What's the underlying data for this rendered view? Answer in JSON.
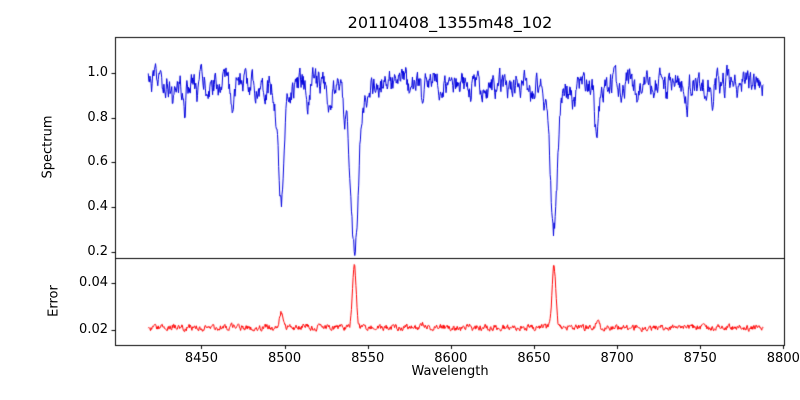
{
  "chart_data": {
    "type": "line",
    "title": "20110408_1355m48_102",
    "xlabel": "Wavelength",
    "xlim": [
      8398,
      8801
    ],
    "x_range": [
      8418,
      8788
    ],
    "xticks": [
      8450,
      8500,
      8550,
      8600,
      8650,
      8700,
      8750,
      8800
    ],
    "xtick_labels": [
      "8450",
      "8500",
      "8550",
      "8600",
      "8650",
      "8700",
      "8750",
      "8800"
    ],
    "grid": false,
    "legend": "none",
    "panels": [
      {
        "name": "spectrum",
        "ylabel": "Spectrum",
        "color": "#0000dd",
        "ylim": [
          0.173,
          1.161
        ],
        "yticks": [
          0.2,
          0.4,
          0.6,
          0.8,
          1.0
        ],
        "ytick_labels": [
          "0.2",
          "0.4",
          "0.6",
          "0.8",
          "1.0"
        ],
        "continuum": 0.955,
        "noise_sd_input": 0.045,
        "noise_smooth": 0.62,
        "clip_max": 1.05,
        "absorption_lines": [
          {
            "center": 8498,
            "depth": 0.47,
            "sigma": 1.7
          },
          {
            "center": 8498,
            "depth": 0.06,
            "sigma": 5.0
          },
          {
            "center": 8542,
            "depth": 0.62,
            "sigma": 2.3
          },
          {
            "center": 8542,
            "depth": 0.1,
            "sigma": 7.0
          },
          {
            "center": 8662,
            "depth": 0.55,
            "sigma": 2.0
          },
          {
            "center": 8662,
            "depth": 0.09,
            "sigma": 6.0
          },
          {
            "center": 8688,
            "depth": 0.22,
            "sigma": 1.4
          },
          {
            "center": 8433,
            "depth": 0.09,
            "sigma": 1.0
          },
          {
            "center": 8440,
            "depth": 0.12,
            "sigma": 0.9
          },
          {
            "center": 8447,
            "depth": 0.07,
            "sigma": 0.8
          },
          {
            "center": 8455,
            "depth": 0.05,
            "sigma": 0.8
          },
          {
            "center": 8468,
            "depth": 0.1,
            "sigma": 1.0
          },
          {
            "center": 8482,
            "depth": 0.06,
            "sigma": 0.8
          },
          {
            "center": 8514,
            "depth": 0.11,
            "sigma": 1.0
          },
          {
            "center": 8527,
            "depth": 0.09,
            "sigma": 0.9
          },
          {
            "center": 8536,
            "depth": 0.06,
            "sigma": 0.8
          },
          {
            "center": 8583,
            "depth": 0.11,
            "sigma": 1.0
          },
          {
            "center": 8598,
            "depth": 0.05,
            "sigma": 0.8
          },
          {
            "center": 8611,
            "depth": 0.07,
            "sigma": 0.9
          },
          {
            "center": 8621,
            "depth": 0.11,
            "sigma": 1.0
          },
          {
            "center": 8635,
            "depth": 0.05,
            "sigma": 0.8
          },
          {
            "center": 8648,
            "depth": 0.07,
            "sigma": 0.9
          },
          {
            "center": 8674,
            "depth": 0.09,
            "sigma": 0.9
          },
          {
            "center": 8702,
            "depth": 0.05,
            "sigma": 0.8
          },
          {
            "center": 8712,
            "depth": 0.08,
            "sigma": 0.9
          },
          {
            "center": 8730,
            "depth": 0.06,
            "sigma": 0.8
          },
          {
            "center": 8742,
            "depth": 0.09,
            "sigma": 0.9
          },
          {
            "center": 8757,
            "depth": 0.07,
            "sigma": 0.8
          },
          {
            "center": 8772,
            "depth": 0.05,
            "sigma": 0.8
          }
        ],
        "line_minima": {
          "8498": 0.42,
          "8542": 0.24,
          "8662": 0.31,
          "8688": 0.73
        }
      },
      {
        "name": "error",
        "ylabel": "Error",
        "color": "#ff0000",
        "ylim": [
          0.0136,
          0.0506
        ],
        "yticks": [
          0.02,
          0.04
        ],
        "ytick_labels": [
          "0.02",
          "0.04"
        ],
        "baseline": 0.021,
        "noise_sd_input": 0.0011,
        "noise_smooth": 0.5,
        "peaks": [
          {
            "center": 8433,
            "height": 0.0008,
            "sigma": 0.9
          },
          {
            "center": 8468,
            "height": 0.001,
            "sigma": 0.9
          },
          {
            "center": 8498,
            "height": 0.0062,
            "sigma": 1.0
          },
          {
            "center": 8514,
            "height": 0.0012,
            "sigma": 0.9
          },
          {
            "center": 8542,
            "height": 0.026,
            "sigma": 1.1
          },
          {
            "center": 8583,
            "height": 0.0022,
            "sigma": 0.9
          },
          {
            "center": 8621,
            "height": 0.001,
            "sigma": 0.9
          },
          {
            "center": 8662,
            "height": 0.027,
            "sigma": 1.1
          },
          {
            "center": 8688,
            "height": 0.0032,
            "sigma": 0.9
          },
          {
            "center": 8742,
            "height": 0.001,
            "sigma": 0.9
          }
        ]
      }
    ]
  }
}
